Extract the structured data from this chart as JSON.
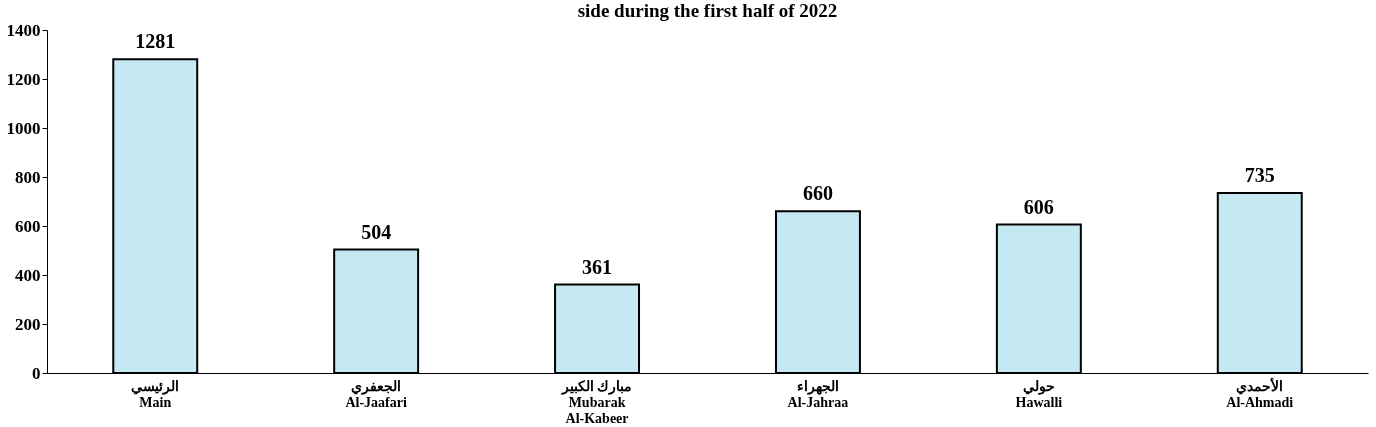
{
  "chart_data": {
    "type": "bar",
    "title": "side during the first half of 2022",
    "categories": [
      "الرئيسي\nMain",
      "الجعفري\nAl-Jaafari",
      "مبارك الكبير\nMubarak\nAl-Kabeer",
      "الجهراء\nAl-Jahraa",
      "حولي\nHawalli",
      "الأحمدي\nAl-Ahmadi"
    ],
    "values": [
      1281,
      504,
      361,
      660,
      606,
      735
    ],
    "color": "#c5e9f3",
    "ylim": [
      0,
      1400
    ],
    "yticks": [
      0,
      200,
      400,
      600,
      800,
      1000,
      1200,
      1400
    ],
    "grid": false,
    "data_labels": true
  }
}
